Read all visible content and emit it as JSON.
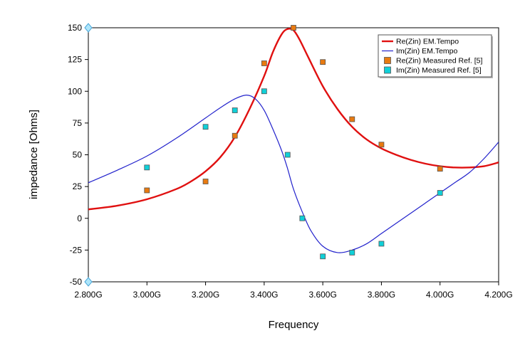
{
  "chart_data": {
    "type": "scatter",
    "xlabel": "Frequency",
    "ylabel": "impedance [Ohms]",
    "xlim": [
      2.8,
      4.2
    ],
    "ylim": [
      -50,
      150
    ],
    "x_ticks": [
      2.8,
      3.0,
      3.2,
      3.4,
      3.6,
      3.8,
      4.0,
      4.2
    ],
    "x_tick_labels": [
      "2.800G",
      "3.000G",
      "3.200G",
      "3.400G",
      "3.600G",
      "3.800G",
      "4.000G",
      "4.200G"
    ],
    "y_ticks": [
      150,
      125,
      100,
      75,
      50,
      25,
      0,
      -25,
      -50
    ],
    "y_tick_labels": [
      "150",
      "125",
      "100",
      "75",
      "50",
      "25",
      "0",
      "-25",
      "-50"
    ],
    "grid": false,
    "legend_position": "top-right",
    "series": [
      {
        "name": "Re(Zin) EM.Tempo",
        "kind": "line",
        "color": "#e01010",
        "x": [
          2.8,
          2.9,
          3.0,
          3.1,
          3.15,
          3.2,
          3.25,
          3.3,
          3.35,
          3.4,
          3.43,
          3.46,
          3.48,
          3.5,
          3.52,
          3.55,
          3.6,
          3.65,
          3.7,
          3.75,
          3.8,
          3.85,
          3.9,
          3.95,
          4.0,
          4.05,
          4.1,
          4.15,
          4.2
        ],
        "y": [
          7,
          10,
          15,
          23,
          29,
          37,
          48,
          64,
          86,
          112,
          131,
          145,
          149,
          148,
          141,
          127,
          104,
          86,
          72,
          62,
          55,
          50,
          46,
          43,
          41,
          40,
          40,
          41,
          44
        ]
      },
      {
        "name": "Im(Zin) EM.Tempo",
        "kind": "line",
        "color": "#2222cc",
        "x": [
          2.8,
          2.9,
          3.0,
          3.1,
          3.2,
          3.25,
          3.3,
          3.34,
          3.37,
          3.4,
          3.43,
          3.46,
          3.48,
          3.5,
          3.53,
          3.56,
          3.6,
          3.65,
          3.7,
          3.75,
          3.8,
          3.85,
          3.9,
          3.95,
          4.0,
          4.05,
          4.1,
          4.15,
          4.2
        ],
        "y": [
          28,
          38,
          49,
          63,
          79,
          87,
          94,
          97,
          94,
          85,
          70,
          53,
          39,
          23,
          5,
          -10,
          -22,
          -27,
          -25,
          -20,
          -12,
          -4,
          4,
          12,
          20,
          28,
          36,
          47,
          60
        ]
      },
      {
        "name": "Re(Zin) Measured Ref. [5]",
        "kind": "markers",
        "color": "#e87a10",
        "x": [
          3.0,
          3.2,
          3.3,
          3.4,
          3.5,
          3.6,
          3.7,
          3.8,
          4.0
        ],
        "y": [
          22,
          29,
          65,
          122,
          150,
          123,
          78,
          58,
          39
        ]
      },
      {
        "name": "Im(Zin) Measured Ref. [5]",
        "kind": "markers",
        "color": "#10d0d8",
        "x": [
          3.0,
          3.2,
          3.3,
          3.4,
          3.48,
          3.53,
          3.6,
          3.7,
          3.8,
          4.0
        ],
        "y": [
          40,
          72,
          85,
          100,
          50,
          0,
          -30,
          -27,
          -20,
          20
        ]
      }
    ]
  }
}
